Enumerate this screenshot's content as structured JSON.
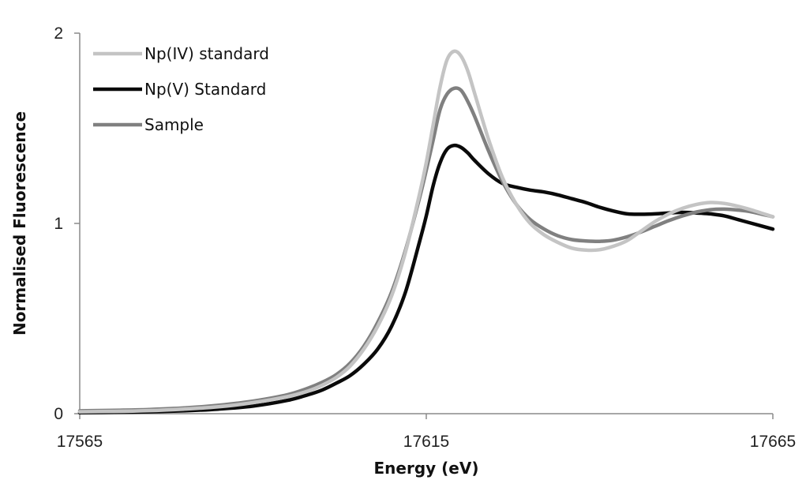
{
  "chart_data": {
    "type": "line",
    "title": "",
    "xlabel": "Energy (eV)",
    "ylabel": "Normalised Fluorescence",
    "xlim": [
      17565,
      17665
    ],
    "ylim": [
      0,
      2
    ],
    "x_ticks": [
      17565,
      17615,
      17665
    ],
    "y_ticks": [
      0,
      1,
      2
    ],
    "grid": false,
    "legend_position": "top-left",
    "series": [
      {
        "name": "Np(IV) standard",
        "color": "#c4c4c4",
        "points": [
          [
            17565,
            0.01
          ],
          [
            17570,
            0.012
          ],
          [
            17575,
            0.016
          ],
          [
            17580,
            0.024
          ],
          [
            17585,
            0.036
          ],
          [
            17590,
            0.058
          ],
          [
            17595,
            0.09
          ],
          [
            17598,
            0.12
          ],
          [
            17600,
            0.15
          ],
          [
            17602,
            0.19
          ],
          [
            17604,
            0.25
          ],
          [
            17606,
            0.34
          ],
          [
            17608,
            0.46
          ],
          [
            17610,
            0.62
          ],
          [
            17612,
            0.85
          ],
          [
            17614,
            1.15
          ],
          [
            17615,
            1.32
          ],
          [
            17616,
            1.52
          ],
          [
            17617,
            1.72
          ],
          [
            17618,
            1.86
          ],
          [
            17619,
            1.905
          ],
          [
            17620,
            1.88
          ],
          [
            17621,
            1.8
          ],
          [
            17622,
            1.68
          ],
          [
            17624,
            1.44
          ],
          [
            17626,
            1.24
          ],
          [
            17628,
            1.1
          ],
          [
            17630,
            1.0
          ],
          [
            17632,
            0.94
          ],
          [
            17634,
            0.9
          ],
          [
            17636,
            0.87
          ],
          [
            17638,
            0.86
          ],
          [
            17640,
            0.862
          ],
          [
            17642,
            0.88
          ],
          [
            17644,
            0.91
          ],
          [
            17646,
            0.96
          ],
          [
            17648,
            1.01
          ],
          [
            17650,
            1.05
          ],
          [
            17652,
            1.08
          ],
          [
            17654,
            1.1
          ],
          [
            17656,
            1.11
          ],
          [
            17658,
            1.105
          ],
          [
            17660,
            1.09
          ],
          [
            17662,
            1.07
          ],
          [
            17665,
            1.035
          ]
        ]
      },
      {
        "name": "Np(V) Standard",
        "color": "#0a0a0a",
        "points": [
          [
            17565,
            0.005
          ],
          [
            17570,
            0.007
          ],
          [
            17575,
            0.01
          ],
          [
            17580,
            0.015
          ],
          [
            17585,
            0.024
          ],
          [
            17590,
            0.04
          ],
          [
            17595,
            0.07
          ],
          [
            17598,
            0.1
          ],
          [
            17600,
            0.125
          ],
          [
            17602,
            0.16
          ],
          [
            17604,
            0.2
          ],
          [
            17606,
            0.26
          ],
          [
            17608,
            0.34
          ],
          [
            17610,
            0.46
          ],
          [
            17612,
            0.64
          ],
          [
            17614,
            0.9
          ],
          [
            17615,
            1.04
          ],
          [
            17616,
            1.2
          ],
          [
            17617,
            1.32
          ],
          [
            17618,
            1.39
          ],
          [
            17619,
            1.41
          ],
          [
            17620,
            1.4
          ],
          [
            17621,
            1.37
          ],
          [
            17622,
            1.33
          ],
          [
            17624,
            1.26
          ],
          [
            17626,
            1.21
          ],
          [
            17628,
            1.19
          ],
          [
            17630,
            1.175
          ],
          [
            17632,
            1.165
          ],
          [
            17634,
            1.15
          ],
          [
            17636,
            1.13
          ],
          [
            17638,
            1.11
          ],
          [
            17640,
            1.085
          ],
          [
            17642,
            1.065
          ],
          [
            17644,
            1.05
          ],
          [
            17646,
            1.048
          ],
          [
            17648,
            1.05
          ],
          [
            17650,
            1.055
          ],
          [
            17652,
            1.058
          ],
          [
            17654,
            1.055
          ],
          [
            17656,
            1.05
          ],
          [
            17658,
            1.04
          ],
          [
            17660,
            1.02
          ],
          [
            17662,
            1.0
          ],
          [
            17665,
            0.97
          ]
        ]
      },
      {
        "name": "Sample",
        "color": "#808080",
        "points": [
          [
            17565,
            0.015
          ],
          [
            17570,
            0.018
          ],
          [
            17575,
            0.022
          ],
          [
            17580,
            0.03
          ],
          [
            17585,
            0.044
          ],
          [
            17590,
            0.066
          ],
          [
            17595,
            0.1
          ],
          [
            17598,
            0.135
          ],
          [
            17600,
            0.165
          ],
          [
            17602,
            0.205
          ],
          [
            17604,
            0.265
          ],
          [
            17606,
            0.355
          ],
          [
            17608,
            0.48
          ],
          [
            17610,
            0.64
          ],
          [
            17612,
            0.86
          ],
          [
            17614,
            1.13
          ],
          [
            17615,
            1.28
          ],
          [
            17616,
            1.44
          ],
          [
            17617,
            1.6
          ],
          [
            17618,
            1.68
          ],
          [
            17619,
            1.71
          ],
          [
            17620,
            1.7
          ],
          [
            17621,
            1.64
          ],
          [
            17622,
            1.56
          ],
          [
            17624,
            1.38
          ],
          [
            17626,
            1.22
          ],
          [
            17628,
            1.1
          ],
          [
            17630,
            1.02
          ],
          [
            17632,
            0.97
          ],
          [
            17634,
            0.935
          ],
          [
            17636,
            0.915
          ],
          [
            17638,
            0.908
          ],
          [
            17640,
            0.906
          ],
          [
            17642,
            0.912
          ],
          [
            17644,
            0.93
          ],
          [
            17646,
            0.955
          ],
          [
            17648,
            0.985
          ],
          [
            17650,
            1.015
          ],
          [
            17652,
            1.04
          ],
          [
            17654,
            1.06
          ],
          [
            17656,
            1.072
          ],
          [
            17658,
            1.075
          ],
          [
            17660,
            1.07
          ],
          [
            17662,
            1.06
          ],
          [
            17665,
            1.035
          ]
        ]
      }
    ]
  }
}
